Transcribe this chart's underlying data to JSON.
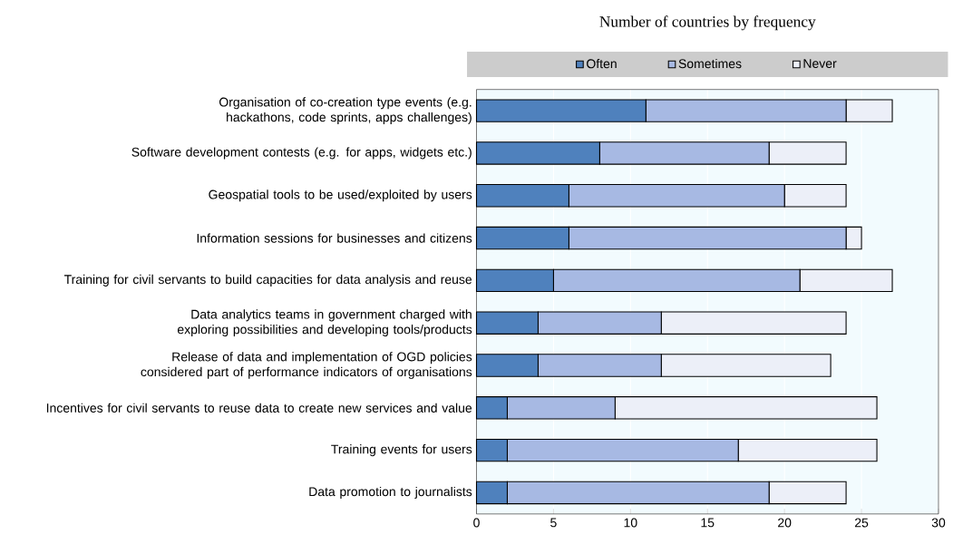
{
  "chart_data": {
    "type": "bar",
    "orientation": "horizontal",
    "stacked": true,
    "title": "Number of countries by frequency",
    "categories": [
      "Organisation of co-creation type events (e.g. hackathons, code sprints, apps challenges)",
      "Software development contests (e.g. for apps, widgets etc.)",
      "Geospatial tools to be used/exploited by users",
      "Information sessions for businesses and citizens",
      "Training for civil servants to build capacities for data analysis and reuse",
      "Data analytics teams in government charged with exploring possibilities and developing tools/products",
      "Release of data and implementation of OGD policies considered part of performance indicators of organisations",
      "Incentives for civil servants to reuse data to create new services and value",
      "Training events for users",
      "Data promotion to journalists"
    ],
    "series": [
      {
        "name": "Often",
        "color": "#4f81bd",
        "values": [
          11,
          8,
          6,
          6,
          5,
          4,
          4,
          2,
          2,
          2
        ]
      },
      {
        "name": "Sometimes",
        "color": "#a7b9e3",
        "values": [
          13,
          11,
          14,
          18,
          16,
          8,
          8,
          7,
          15,
          17
        ]
      },
      {
        "name": "Never",
        "color": "#eceff8",
        "values": [
          3,
          5,
          4,
          1,
          6,
          12,
          11,
          17,
          9,
          5
        ]
      }
    ],
    "xlim": [
      0,
      30
    ],
    "xticks": [
      0,
      5,
      10,
      15,
      20,
      25,
      30
    ],
    "grid": "x",
    "legend": "top"
  }
}
